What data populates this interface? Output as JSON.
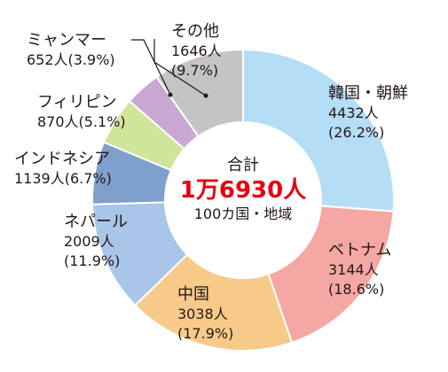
{
  "chart_data": {
    "type": "pie",
    "title": "",
    "center": {
      "line1": "合計",
      "total": "1万6930人",
      "line3": "100カ国・地域"
    },
    "slices": [
      {
        "name": "韓国・朝鮮",
        "value": 4432,
        "value_label": "4432人",
        "percent_label": "(26.2%)",
        "color": "#b3def5"
      },
      {
        "name": "ベトナム",
        "value": 3144,
        "value_label": "3144人",
        "percent_label": "(18.6%)",
        "color": "#f4a7a3"
      },
      {
        "name": "中国",
        "value": 3038,
        "value_label": "3038人",
        "percent_label": "(17.9%)",
        "color": "#f7ca8a"
      },
      {
        "name": "ネパール",
        "value": 2009,
        "value_label": "2009人",
        "percent_label": "(11.9%)",
        "color": "#a9c5e8"
      },
      {
        "name": "インドネシア",
        "value": 1139,
        "value_label": "1139人(6.7%)",
        "percent_label": "",
        "color": "#7f9fcd"
      },
      {
        "name": "フィリピン",
        "value": 870,
        "value_label": "870人(5.1%)",
        "percent_label": "",
        "color": "#d0e49a"
      },
      {
        "name": "ミャンマー",
        "value": 652,
        "value_label": "652人(3.9%)",
        "percent_label": "",
        "color": "#c9a7d3"
      },
      {
        "name": "その他",
        "value": 1646,
        "value_label": "1646人",
        "percent_label": "(9.7%)",
        "color": "#c4c4c4"
      }
    ]
  }
}
